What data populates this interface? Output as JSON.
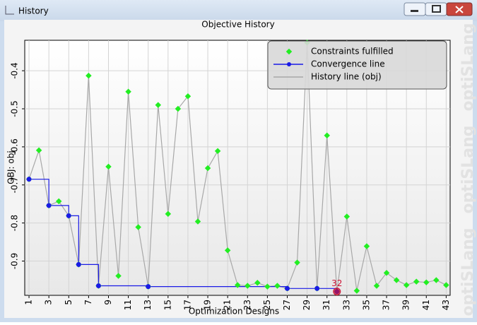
{
  "window": {
    "title": "History"
  },
  "watermark": "optiSLang",
  "chart_data": {
    "type": "line",
    "title": "Objective History",
    "x_label": "Optimization Designs",
    "y_label": "OBJ: obj",
    "x": [
      1,
      2,
      3,
      4,
      5,
      6,
      7,
      8,
      9,
      10,
      11,
      12,
      13,
      14,
      15,
      16,
      17,
      18,
      19,
      20,
      21,
      22,
      23,
      24,
      25,
      26,
      27,
      28,
      29,
      30,
      31,
      32,
      33,
      34,
      35,
      36,
      37,
      38,
      39,
      40,
      41,
      42,
      43
    ],
    "series": [
      {
        "name": "History line (obj)",
        "color": "#a8a8a8",
        "values": [
          -0.685,
          -0.609,
          -0.754,
          -0.743,
          -0.781,
          -0.909,
          -0.413,
          -0.965,
          -0.652,
          -0.939,
          -0.455,
          -0.811,
          -0.967,
          -0.49,
          -0.776,
          -0.5,
          -0.467,
          -0.796,
          -0.656,
          -0.611,
          -0.872,
          -0.963,
          -0.965,
          -0.957,
          -0.967,
          -0.965,
          -0.972,
          -0.904,
          -0.326,
          -0.972,
          -0.57,
          -0.98,
          -0.783,
          -0.978,
          -0.861,
          -0.965,
          -0.931,
          -0.95,
          -0.963,
          -0.954,
          -0.956,
          -0.95,
          -0.963
        ]
      }
    ],
    "markers": {
      "name": "Constraints fulfilled",
      "color": "#22ee22"
    },
    "convergence": {
      "name": "Convergence line",
      "color": "#1a1ae6",
      "x": [
        1,
        3,
        5,
        6,
        8,
        13,
        27,
        30,
        32
      ],
      "values": [
        -0.685,
        -0.754,
        -0.781,
        -0.909,
        -0.965,
        -0.967,
        -0.972,
        -0.972,
        -0.98
      ]
    },
    "best_design": 32,
    "best_color": "#cc1133",
    "xlim": [
      0.57,
      43.4
    ],
    "ylim": [
      -0.99,
      -0.32
    ],
    "xticks": [
      1,
      3,
      5,
      7,
      9,
      11,
      13,
      15,
      17,
      19,
      21,
      23,
      25,
      27,
      29,
      31,
      33,
      35,
      37,
      39,
      41,
      43
    ],
    "yticks": [
      -0.4,
      -0.5,
      -0.6,
      -0.7,
      -0.8,
      -0.9
    ],
    "grid": true,
    "legend": "top-right"
  }
}
